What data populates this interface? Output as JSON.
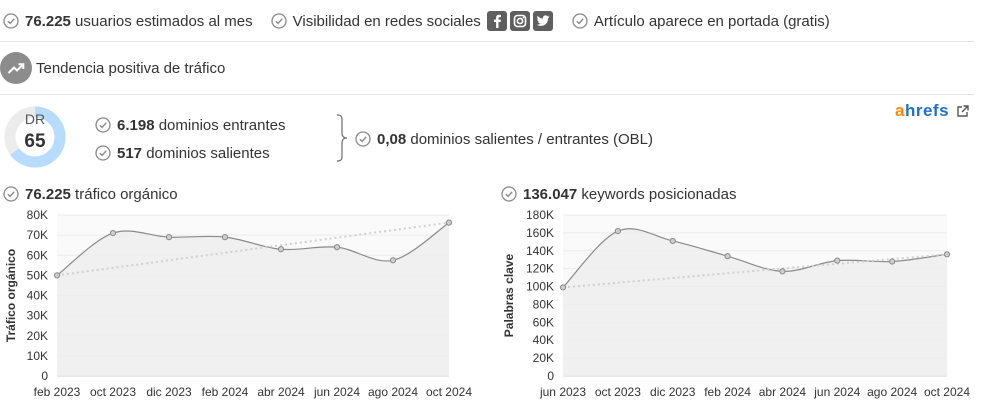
{
  "top_stats": {
    "users_value": "76.225",
    "users_label": " usuarios estimados al mes",
    "social_label": "Visibilidad en redes sociales",
    "frontpage_label": "Artículo aparece en portada (gratis)"
  },
  "social_icons": [
    "facebook-icon",
    "instagram-icon",
    "twitter-icon"
  ],
  "trend": {
    "label": "Tendencia positiva de tráfico"
  },
  "dr": {
    "label": "DR",
    "value": "65",
    "fraction": 0.65
  },
  "domains": {
    "incoming_value": "6.198",
    "incoming_label": " dominios entrantes",
    "outgoing_value": "517",
    "outgoing_label": " dominios salientes",
    "obl_value": "0,08",
    "obl_label": " dominios salientes / entrantes (OBL)"
  },
  "brand": {
    "part1": "a",
    "part2": "hrefs"
  },
  "colors": {
    "accent": "#1f6fd0",
    "ahrefs_orange": "#ff8800",
    "dr_ring": "#b8dcff",
    "line": "#888888"
  },
  "traffic": {
    "value": "76.225",
    "label": " tráfico orgánico"
  },
  "keywords": {
    "value": "136.047",
    "label": " keywords posicionadas"
  },
  "chart_data": [
    {
      "type": "line",
      "ylabel": "Tráfico orgánico",
      "x": [
        "feb 2023",
        "oct 2023",
        "dic 2023",
        "feb 2024",
        "abr 2024",
        "jun 2024",
        "ago 2024",
        "oct 2024"
      ],
      "yticks": [
        "0",
        "10K",
        "20K",
        "30K",
        "40K",
        "50K",
        "60K",
        "70K",
        "80K"
      ],
      "ylim": [
        0,
        80000
      ],
      "values": [
        50000,
        71000,
        69000,
        69000,
        63000,
        64000,
        57500,
        76225
      ],
      "trendline": [
        50000,
        76225
      ],
      "grid": true
    },
    {
      "type": "line",
      "ylabel": "Palabras clave",
      "x": [
        "jun 2023",
        "oct 2023",
        "dic 2023",
        "feb 2024",
        "abr 2024",
        "jun 2024",
        "ago 2024",
        "oct 2024"
      ],
      "yticks": [
        "0",
        "20K",
        "40K",
        "60K",
        "80K",
        "100K",
        "120K",
        "140K",
        "160K",
        "180K"
      ],
      "ylim": [
        0,
        180000
      ],
      "values": [
        99000,
        162000,
        151000,
        134000,
        117000,
        129000,
        128000,
        136047
      ],
      "trendline": [
        99000,
        136047
      ],
      "grid": true
    }
  ]
}
